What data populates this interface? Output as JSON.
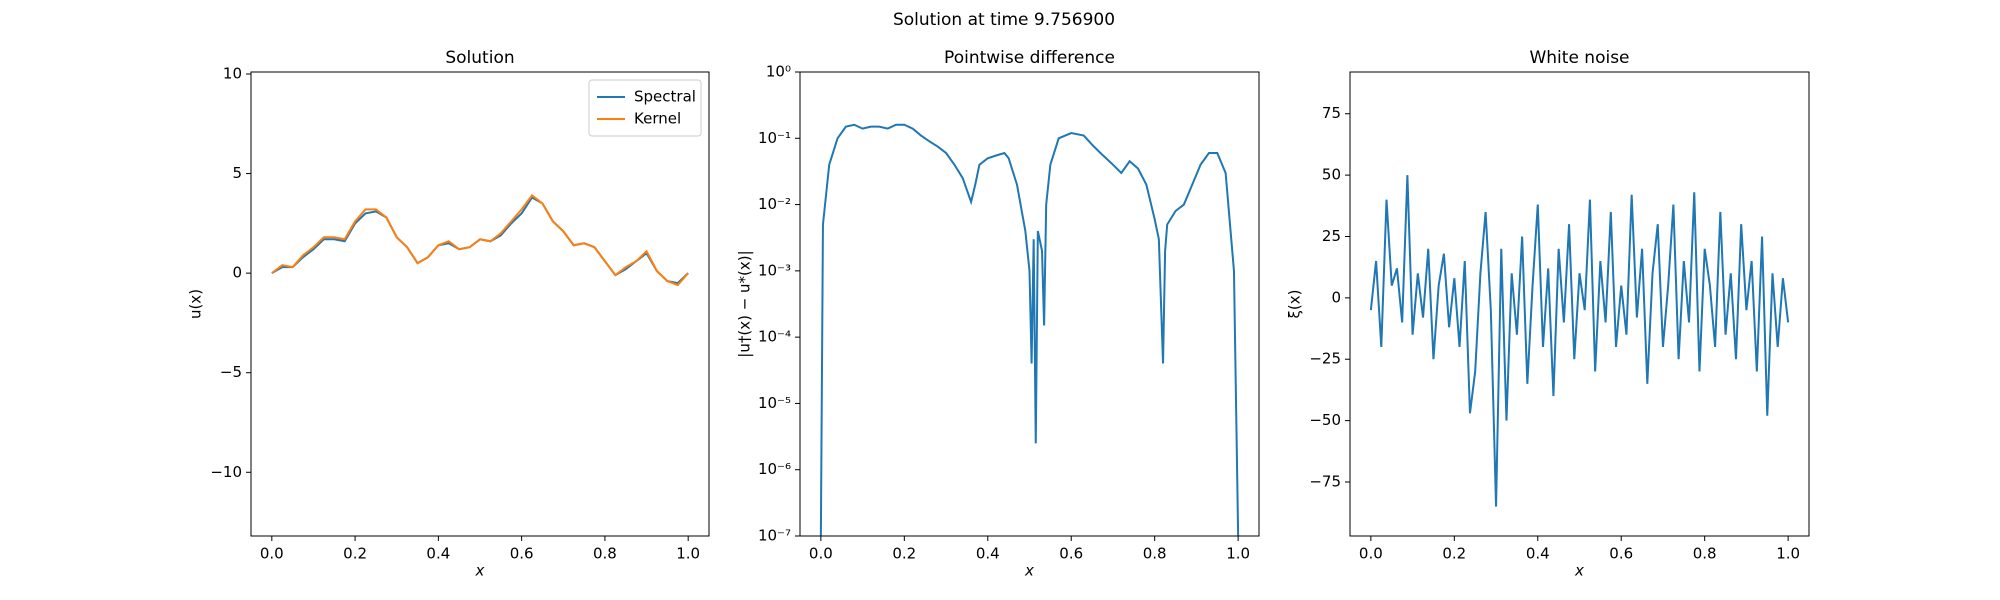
{
  "title": "Solution at time 9.756900",
  "chart_data": [
    {
      "type": "line",
      "title": "Solution",
      "xlabel": "x",
      "ylabel": "u(x)",
      "xlim": [
        -0.05,
        1.05
      ],
      "ylim": [
        -13.2,
        10.1
      ],
      "xticks": [
        {
          "value": 0,
          "label": "0.0"
        },
        0.2,
        0.4,
        0.6,
        0.8,
        {
          "value": 1,
          "label": "1.0"
        }
      ],
      "yticks": [
        {
          "value": -10,
          "label": "−10"
        },
        {
          "value": -5,
          "label": "−5"
        },
        0,
        5,
        10
      ],
      "log_y": false,
      "grid": false,
      "legend": "upper right",
      "x": [
        0,
        0.025,
        0.05,
        0.075,
        0.1,
        0.125,
        0.15,
        0.175,
        0.2,
        0.225,
        0.25,
        0.275,
        0.3,
        0.325,
        0.35,
        0.375,
        0.4,
        0.425,
        0.45,
        0.475,
        0.5,
        0.525,
        0.55,
        0.575,
        0.6,
        0.625,
        0.65,
        0.675,
        0.7,
        0.725,
        0.75,
        0.775,
        0.8,
        0.825,
        0.85,
        0.875,
        0.9,
        0.925,
        0.95,
        0.975,
        1
      ],
      "series": [
        {
          "name": "Spectral",
          "color": "#1f77b4",
          "values": [
            0,
            0.3,
            0.3,
            0.8,
            1.2,
            1.7,
            1.7,
            1.6,
            2.5,
            3.0,
            3.1,
            2.8,
            1.8,
            1.3,
            0.5,
            0.8,
            1.4,
            1.5,
            1.2,
            1.3,
            1.7,
            1.6,
            1.9,
            2.5,
            3.0,
            3.8,
            3.5,
            2.6,
            2.1,
            1.4,
            1.5,
            1.3,
            0.6,
            -0.1,
            0.2,
            0.6,
            1.0,
            0.1,
            -0.4,
            -0.5,
            0
          ]
        },
        {
          "name": "Kernel",
          "color": "#ff7f0e",
          "values": [
            0,
            0.4,
            0.3,
            0.9,
            1.3,
            1.8,
            1.8,
            1.7,
            2.6,
            3.2,
            3.2,
            2.8,
            1.8,
            1.3,
            0.5,
            0.8,
            1.4,
            1.6,
            1.2,
            1.3,
            1.7,
            1.6,
            2.0,
            2.6,
            3.2,
            3.9,
            3.5,
            2.6,
            2.1,
            1.4,
            1.5,
            1.3,
            0.6,
            -0.1,
            0.3,
            0.6,
            1.1,
            0.1,
            -0.4,
            -0.6,
            0
          ]
        }
      ]
    },
    {
      "type": "line",
      "title": "Pointwise difference",
      "xlabel": "x",
      "ylabel": "|u†(x) − u*(x)|",
      "xlim": [
        -0.05,
        1.05
      ],
      "ylim": [
        1e-07,
        1
      ],
      "xticks": [
        {
          "value": 0,
          "label": "0.0"
        },
        0.2,
        0.4,
        0.6,
        0.8,
        {
          "value": 1,
          "label": "1.0"
        }
      ],
      "yticks": [
        {
          "value": 1e-07,
          "label": "10⁻⁷"
        },
        {
          "value": 1e-06,
          "label": "10⁻⁶"
        },
        {
          "value": 1e-05,
          "label": "10⁻⁵"
        },
        {
          "value": 0.0001,
          "label": "10⁻⁴"
        },
        {
          "value": 0.001,
          "label": "10⁻³"
        },
        {
          "value": 0.01,
          "label": "10⁻²"
        },
        {
          "value": 0.1,
          "label": "10⁻¹"
        },
        {
          "value": 1,
          "label": "10⁰"
        }
      ],
      "log_y": true,
      "grid": false,
      "color": "#1f77b4",
      "x": [
        0,
        0.005,
        0.01,
        0.02,
        0.04,
        0.06,
        0.08,
        0.1,
        0.12,
        0.14,
        0.16,
        0.18,
        0.2,
        0.22,
        0.24,
        0.26,
        0.28,
        0.3,
        0.32,
        0.34,
        0.36,
        0.37,
        0.38,
        0.4,
        0.42,
        0.44,
        0.45,
        0.47,
        0.49,
        0.5,
        0.505,
        0.51,
        0.515,
        0.52,
        0.53,
        0.535,
        0.54,
        0.55,
        0.57,
        0.6,
        0.63,
        0.65,
        0.67,
        0.7,
        0.72,
        0.74,
        0.76,
        0.78,
        0.8,
        0.81,
        0.82,
        0.825,
        0.83,
        0.85,
        0.87,
        0.89,
        0.91,
        0.93,
        0.95,
        0.97,
        0.99,
        1
      ],
      "values": [
        1e-07,
        0.005,
        0.01,
        0.04,
        0.1,
        0.15,
        0.16,
        0.14,
        0.15,
        0.15,
        0.14,
        0.16,
        0.16,
        0.14,
        0.11,
        0.09,
        0.075,
        0.06,
        0.04,
        0.025,
        0.011,
        0.02,
        0.04,
        0.05,
        0.055,
        0.06,
        0.05,
        0.02,
        0.004,
        0.001,
        4e-05,
        0.003,
        2.5e-06,
        0.004,
        0.002,
        0.00015,
        0.01,
        0.04,
        0.1,
        0.12,
        0.11,
        0.08,
        0.06,
        0.04,
        0.03,
        0.045,
        0.035,
        0.02,
        0.006,
        0.003,
        4e-05,
        0.002,
        0.005,
        0.008,
        0.01,
        0.02,
        0.04,
        0.06,
        0.06,
        0.03,
        0.001,
        1e-07
      ]
    },
    {
      "type": "line",
      "title": "White noise",
      "xlabel": "x",
      "ylabel": "ξ(x)",
      "xlim": [
        -0.05,
        1.05
      ],
      "ylim": [
        -97,
        92
      ],
      "xticks": [
        {
          "value": 0,
          "label": "0.0"
        },
        0.2,
        0.4,
        0.6,
        0.8,
        {
          "value": 1,
          "label": "1.0"
        }
      ],
      "yticks": [
        {
          "value": -75,
          "label": "−75"
        },
        {
          "value": -50,
          "label": "−50"
        },
        {
          "value": -25,
          "label": "−25"
        },
        0,
        25,
        50,
        75
      ],
      "log_y": false,
      "grid": false,
      "color": "#1f77b4",
      "x": [
        0,
        0.0125,
        0.025,
        0.0375,
        0.05,
        0.0625,
        0.075,
        0.0875,
        0.1,
        0.1125,
        0.125,
        0.1375,
        0.15,
        0.1625,
        0.175,
        0.1875,
        0.2,
        0.2125,
        0.225,
        0.2375,
        0.25,
        0.2625,
        0.275,
        0.2875,
        0.3,
        0.3125,
        0.325,
        0.3375,
        0.35,
        0.3625,
        0.375,
        0.3875,
        0.4,
        0.4125,
        0.425,
        0.4375,
        0.45,
        0.4625,
        0.475,
        0.4875,
        0.5,
        0.5125,
        0.525,
        0.5375,
        0.55,
        0.5625,
        0.575,
        0.5875,
        0.6,
        0.6125,
        0.625,
        0.6375,
        0.65,
        0.6625,
        0.675,
        0.6875,
        0.7,
        0.7125,
        0.725,
        0.7375,
        0.75,
        0.7625,
        0.775,
        0.7875,
        0.8,
        0.8125,
        0.825,
        0.8375,
        0.85,
        0.8625,
        0.875,
        0.8875,
        0.9,
        0.9125,
        0.925,
        0.9375,
        0.95,
        0.9625,
        0.975,
        0.9875,
        1
      ],
      "values": [
        -5,
        15,
        -20,
        40,
        5,
        12,
        -10,
        50,
        -15,
        10,
        -8,
        20,
        -25,
        5,
        18,
        -12,
        8,
        -20,
        15,
        -47,
        -30,
        10,
        35,
        -5,
        -85,
        20,
        -50,
        10,
        -15,
        25,
        -35,
        5,
        38,
        -20,
        12,
        -40,
        20,
        -10,
        30,
        -25,
        10,
        -5,
        40,
        -30,
        15,
        -10,
        35,
        -20,
        5,
        -15,
        42,
        -8,
        20,
        -35,
        10,
        30,
        -20,
        5,
        38,
        -25,
        15,
        -10,
        43,
        -30,
        20,
        5,
        -20,
        35,
        -15,
        10,
        -25,
        30,
        -5,
        15,
        -30,
        25,
        -48,
        10,
        -20,
        8,
        -10
      ]
    }
  ]
}
